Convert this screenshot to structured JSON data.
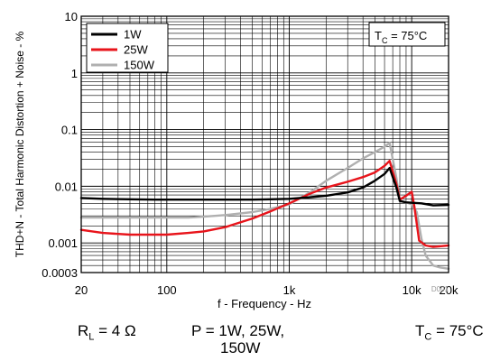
{
  "chart_data": {
    "type": "line",
    "xscale": "log",
    "yscale": "log",
    "xlim": [
      20,
      20000
    ],
    "ylim": [
      0.0003,
      10
    ],
    "xlabel": "f - Frequency - Hz",
    "ylabel": "THD+N - Total Harmonic Distortion + Noise - %",
    "xticks": [
      {
        "value": 20,
        "label": "20"
      },
      {
        "value": 100,
        "label": "100"
      },
      {
        "value": 1000,
        "label": "1k"
      },
      {
        "value": 10000,
        "label": "10k"
      },
      {
        "value": 20000,
        "label": "20k"
      }
    ],
    "yticks": [
      {
        "value": 10,
        "label": "10"
      },
      {
        "value": 1,
        "label": "1"
      },
      {
        "value": 0.1,
        "label": "0.1"
      },
      {
        "value": 0.01,
        "label": "0.01"
      },
      {
        "value": 0.001,
        "label": "0.001"
      },
      {
        "value": 0.0003,
        "label": "0.0003"
      }
    ],
    "grid": true,
    "legend_position": "top-left",
    "annotation": {
      "main": "T",
      "sub": "C",
      "rest": " = 75°C"
    },
    "figure_id": "D001",
    "series": [
      {
        "name": "1W",
        "color": "#000000",
        "x": [
          20,
          30,
          50,
          80,
          100,
          150,
          200,
          300,
          500,
          700,
          1000,
          1500,
          2000,
          3000,
          4000,
          5000,
          6000,
          6600,
          7500,
          8000,
          9000,
          10000,
          12000,
          15000,
          20000
        ],
        "y": [
          0.0062,
          0.006,
          0.0059,
          0.0058,
          0.0058,
          0.0058,
          0.0058,
          0.0058,
          0.0058,
          0.0059,
          0.006,
          0.0064,
          0.0068,
          0.0078,
          0.0095,
          0.0125,
          0.0165,
          0.021,
          0.0095,
          0.0055,
          0.0052,
          0.0051,
          0.005,
          0.0046,
          0.0047
        ]
      },
      {
        "name": "25W",
        "color": "#e8141b",
        "x": [
          20,
          30,
          50,
          80,
          100,
          150,
          200,
          300,
          500,
          700,
          1000,
          1500,
          2000,
          3000,
          4000,
          5000,
          6000,
          6600,
          7500,
          8000,
          9000,
          10000,
          10500,
          11500,
          13000,
          15000,
          20000
        ],
        "y": [
          0.0017,
          0.0015,
          0.0014,
          0.0014,
          0.0014,
          0.0015,
          0.0016,
          0.0019,
          0.0027,
          0.0036,
          0.005,
          0.0075,
          0.0095,
          0.012,
          0.0145,
          0.0175,
          0.023,
          0.028,
          0.011,
          0.0058,
          0.0068,
          0.008,
          0.0045,
          0.0011,
          0.0009,
          0.00085,
          0.0009
        ]
      },
      {
        "name": "150W",
        "color": "#b0b0b0",
        "x": [
          20,
          30,
          50,
          80,
          100,
          150,
          200,
          300,
          500,
          700,
          1000,
          1500,
          2000,
          3000,
          4000,
          5000,
          6000,
          6600,
          7500,
          8000,
          9000,
          10000,
          11000,
          12000,
          13000,
          15000,
          17000,
          20000
        ],
        "y": [
          0.0028,
          0.0028,
          0.0028,
          0.0028,
          0.0028,
          0.0028,
          0.0029,
          0.0031,
          0.0035,
          0.004,
          0.0048,
          0.008,
          0.0125,
          0.021,
          0.031,
          0.04,
          0.05,
          0.058,
          0.014,
          0.0055,
          0.0052,
          0.0048,
          0.0035,
          0.0012,
          0.0006,
          0.0004,
          0.00037,
          0.00035
        ]
      }
    ]
  },
  "conditions": {
    "rl": {
      "main": "R",
      "sub": "L",
      "rest": " = 4 Ω"
    },
    "power_line1": "P = 1W, 25W,",
    "power_line2": "150W",
    "tc": {
      "main": "T",
      "sub": "C",
      "rest": " = 75°C"
    }
  }
}
